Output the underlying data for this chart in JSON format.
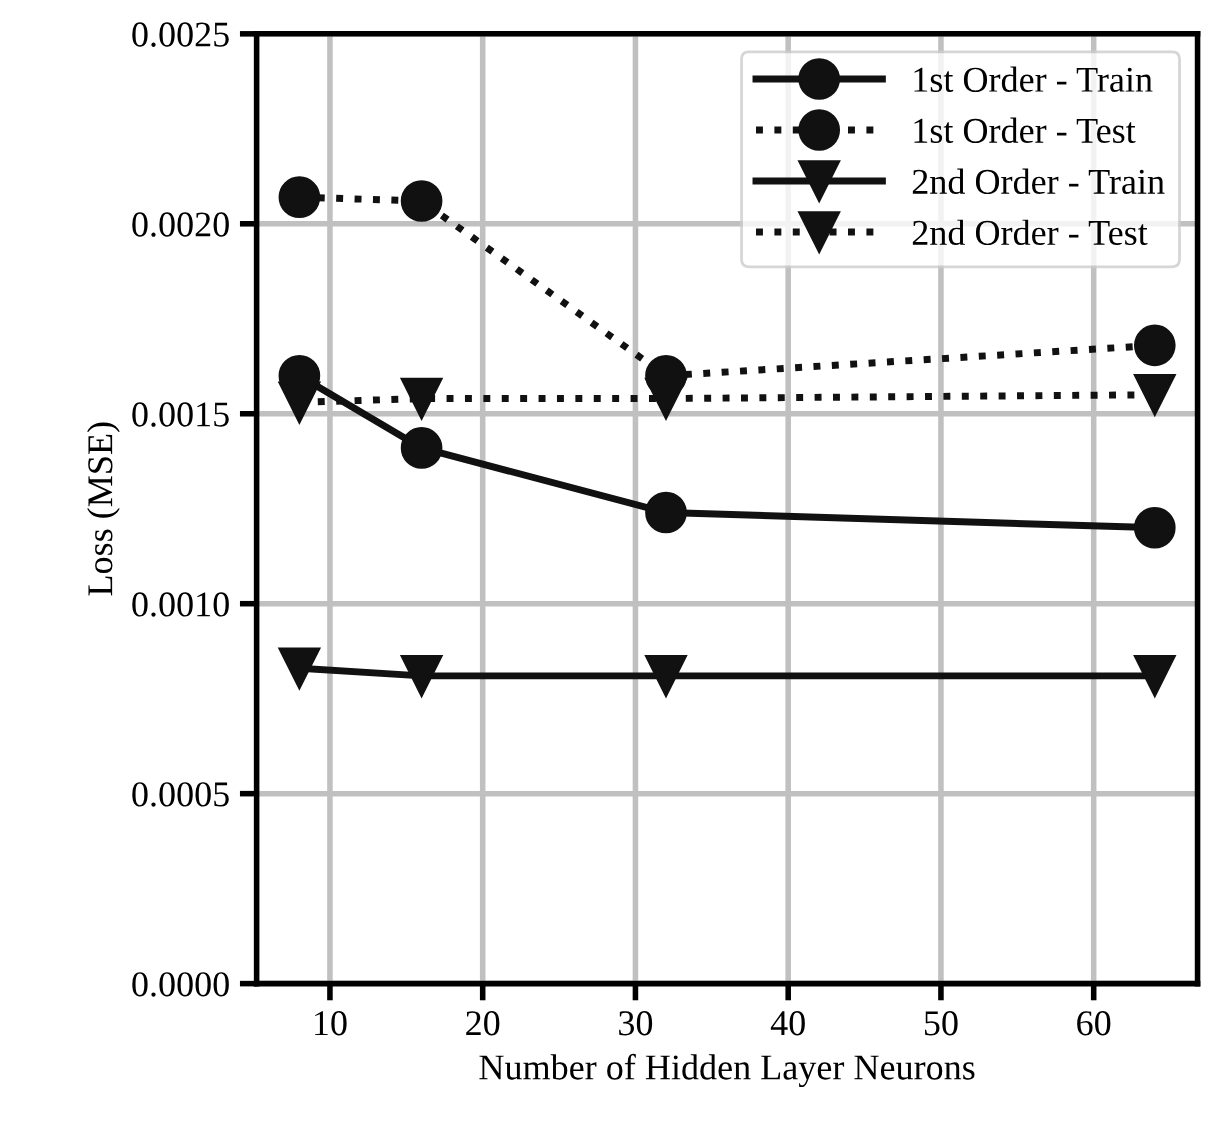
{
  "chart_data": {
    "type": "line",
    "xlabel": "Number of Hidden Layer Neurons",
    "ylabel": "Loss (MSE)",
    "x": [
      8,
      16,
      32,
      64
    ],
    "series": [
      {
        "name": "1st Order - Train",
        "color": "#111111",
        "values": [
          0.0016,
          0.00141,
          0.00124,
          0.0012
        ],
        "marker": "circle",
        "line_style": "solid"
      },
      {
        "name": "1st Order - Test",
        "color": "#111111",
        "values": [
          0.00207,
          0.00206,
          0.0016,
          0.00168
        ],
        "marker": "circle",
        "line_style": "dotted"
      },
      {
        "name": "2nd Order - Train",
        "color": "#111111",
        "values": [
          0.00083,
          0.00081,
          0.00081,
          0.00081
        ],
        "marker": "triangle",
        "line_style": "solid"
      },
      {
        "name": "2nd Order - Test",
        "color": "#111111",
        "values": [
          0.00153,
          0.00154,
          0.00154,
          0.00155
        ],
        "marker": "triangle",
        "line_style": "dotted"
      }
    ],
    "xlim": [
      5.2,
      66.8
    ],
    "xticks": [
      10,
      20,
      30,
      40,
      50,
      60
    ],
    "ylim": [
      0,
      0.0025
    ],
    "yticks": [
      {
        "value": 0,
        "label": "0.0000"
      },
      {
        "value": 0.0005,
        "label": "0.0005"
      },
      {
        "value": 0.001,
        "label": "0.0010"
      },
      {
        "value": 0.0015,
        "label": "0.0015"
      },
      {
        "value": 0.002,
        "label": "0.0020"
      },
      {
        "value": 0.0025,
        "label": "0.0025"
      }
    ],
    "grid": true,
    "legend": "top right"
  }
}
